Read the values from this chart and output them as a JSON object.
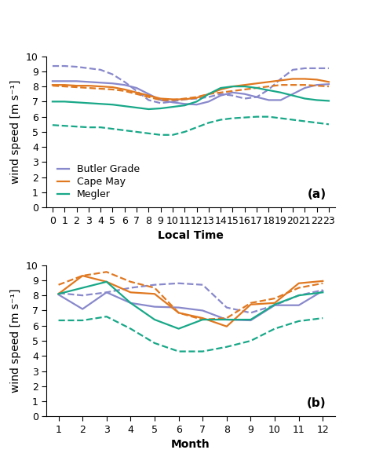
{
  "colors": {
    "butler": "#8888CC",
    "cape_may": "#E07820",
    "megler": "#18A888"
  },
  "panel_a": {
    "x": [
      0,
      1,
      2,
      3,
      4,
      5,
      6,
      7,
      8,
      9,
      10,
      11,
      12,
      13,
      14,
      15,
      16,
      17,
      18,
      19,
      20,
      21,
      22,
      23
    ],
    "butler_solid": [
      8.35,
      8.35,
      8.35,
      8.3,
      8.25,
      8.2,
      8.1,
      7.9,
      7.5,
      7.1,
      6.95,
      6.85,
      6.8,
      7.0,
      7.4,
      7.6,
      7.5,
      7.3,
      7.1,
      7.1,
      7.5,
      7.9,
      8.1,
      8.15
    ],
    "butler_dashed": [
      9.35,
      9.35,
      9.3,
      9.2,
      9.1,
      8.8,
      8.3,
      7.7,
      7.1,
      6.9,
      7.0,
      7.15,
      7.2,
      7.3,
      7.5,
      7.4,
      7.2,
      7.3,
      7.8,
      8.5,
      9.1,
      9.2,
      9.2,
      9.2
    ],
    "capemay_solid": [
      8.1,
      8.1,
      8.05,
      8.05,
      8.0,
      7.95,
      7.8,
      7.6,
      7.4,
      7.2,
      7.15,
      7.15,
      7.25,
      7.5,
      7.8,
      8.0,
      8.1,
      8.2,
      8.3,
      8.4,
      8.5,
      8.5,
      8.45,
      8.3
    ],
    "capemay_dashed": [
      8.05,
      8.0,
      7.95,
      7.9,
      7.85,
      7.8,
      7.7,
      7.5,
      7.3,
      7.1,
      7.1,
      7.2,
      7.3,
      7.5,
      7.6,
      7.7,
      7.8,
      7.9,
      8.0,
      8.1,
      8.1,
      8.1,
      8.05,
      8.0
    ],
    "megler_solid": [
      7.0,
      7.0,
      6.95,
      6.9,
      6.85,
      6.8,
      6.7,
      6.6,
      6.5,
      6.55,
      6.65,
      6.75,
      7.0,
      7.5,
      7.9,
      8.0,
      8.0,
      7.9,
      7.75,
      7.6,
      7.4,
      7.2,
      7.1,
      7.05
    ],
    "megler_dashed": [
      5.45,
      5.4,
      5.35,
      5.3,
      5.3,
      5.2,
      5.1,
      5.0,
      4.9,
      4.8,
      4.8,
      5.0,
      5.3,
      5.6,
      5.8,
      5.9,
      5.95,
      6.0,
      6.0,
      5.9,
      5.8,
      5.7,
      5.6,
      5.5
    ]
  },
  "panel_b": {
    "x": [
      1,
      2,
      3,
      4,
      5,
      6,
      7,
      8,
      9,
      10,
      11,
      12
    ],
    "butler_solid": [
      8.05,
      7.1,
      8.2,
      7.5,
      7.25,
      7.2,
      7.0,
      6.4,
      6.35,
      7.35,
      7.35,
      8.3
    ],
    "butler_dashed": [
      8.15,
      8.0,
      8.2,
      8.5,
      8.7,
      8.8,
      8.7,
      7.2,
      6.85,
      7.35,
      8.0,
      8.35
    ],
    "capemay_solid": [
      8.1,
      9.3,
      8.9,
      8.2,
      8.1,
      6.85,
      6.5,
      5.95,
      7.4,
      7.5,
      8.8,
      8.95
    ],
    "capemay_dashed": [
      8.7,
      9.3,
      9.55,
      8.9,
      8.5,
      6.85,
      6.4,
      6.5,
      7.5,
      7.8,
      8.5,
      8.8
    ],
    "megler_solid": [
      8.1,
      8.5,
      8.9,
      7.5,
      6.4,
      5.8,
      6.4,
      6.4,
      6.4,
      7.4,
      8.0,
      8.2
    ],
    "megler_dashed": [
      6.35,
      6.35,
      6.6,
      5.8,
      4.85,
      4.3,
      4.3,
      4.6,
      5.0,
      5.8,
      6.3,
      6.5
    ]
  },
  "ylabel": "wind speed [m s⁻¹]",
  "xlabel_a": "Local Time",
  "xlabel_b": "Month",
  "legend_labels": [
    "Butler Grade",
    "Cape May",
    "Megler"
  ],
  "ylim": [
    0,
    10
  ],
  "yticks": [
    0,
    1,
    2,
    3,
    4,
    5,
    6,
    7,
    8,
    9,
    10
  ],
  "xticks_a": [
    0,
    1,
    2,
    3,
    4,
    5,
    6,
    7,
    8,
    9,
    10,
    11,
    12,
    13,
    14,
    15,
    16,
    17,
    18,
    19,
    20,
    21,
    22,
    23
  ],
  "xticks_b": [
    1,
    2,
    3,
    4,
    5,
    6,
    7,
    8,
    9,
    10,
    11,
    12
  ],
  "lw": 1.6,
  "label_fontsize": 10,
  "tick_fontsize": 9,
  "legend_fontsize": 9,
  "annot_fontsize": 11
}
